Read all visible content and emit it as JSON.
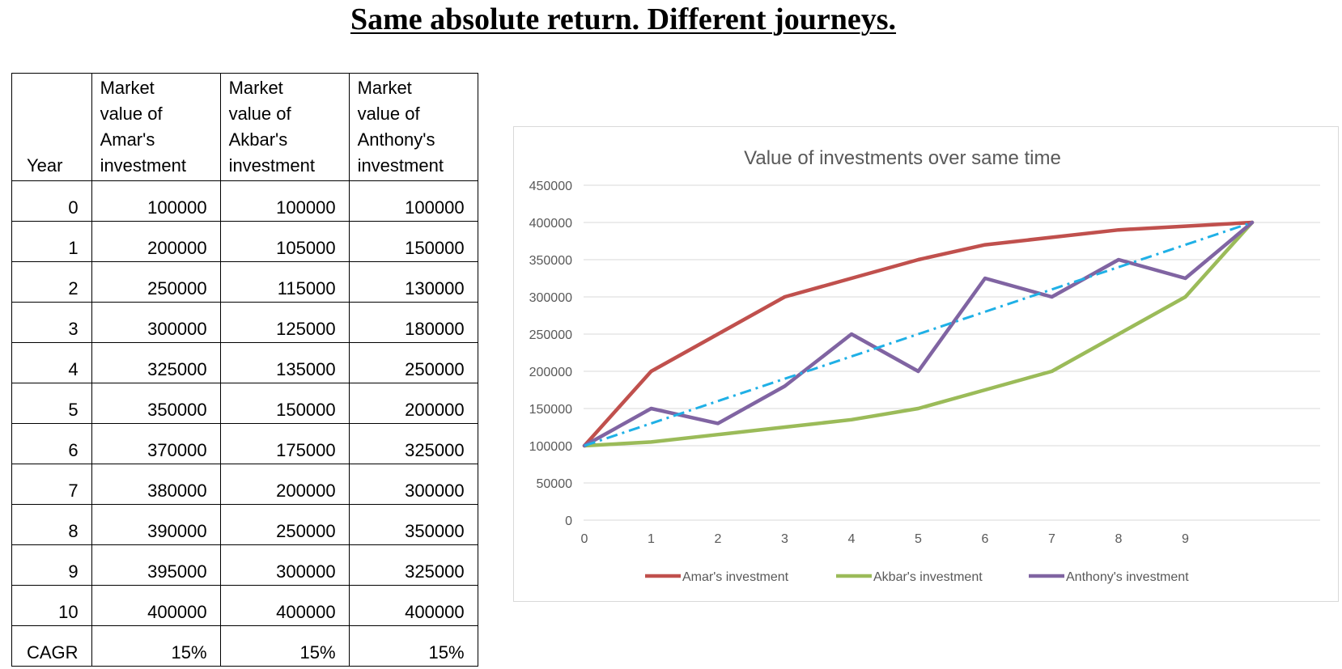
{
  "page": {
    "title": "Same absolute return. Different journeys."
  },
  "table": {
    "headers": [
      "Year",
      "Market value of Amar's investment",
      "Market value of Akbar's investment",
      "Market value of Anthony's investment"
    ],
    "header_lines": [
      [
        "Year"
      ],
      [
        "Market",
        "value of",
        "Amar's",
        "investment"
      ],
      [
        "Market",
        "value of",
        "Akbar's",
        "investment"
      ],
      [
        "Market",
        "value of",
        "Anthony's",
        "investment"
      ]
    ],
    "rows": [
      [
        "0",
        "100000",
        "100000",
        "100000"
      ],
      [
        "1",
        "200000",
        "105000",
        "150000"
      ],
      [
        "2",
        "250000",
        "115000",
        "130000"
      ],
      [
        "3",
        "300000",
        "125000",
        "180000"
      ],
      [
        "4",
        "325000",
        "135000",
        "250000"
      ],
      [
        "5",
        "350000",
        "150000",
        "200000"
      ],
      [
        "6",
        "370000",
        "175000",
        "325000"
      ],
      [
        "7",
        "380000",
        "200000",
        "300000"
      ],
      [
        "8",
        "390000",
        "250000",
        "350000"
      ],
      [
        "9",
        "395000",
        "300000",
        "325000"
      ],
      [
        "10",
        "400000",
        "400000",
        "400000"
      ],
      [
        "CAGR",
        "15%",
        "15%",
        "15%"
      ]
    ]
  },
  "chart_data": {
    "type": "line",
    "title": "Value of investments over same time",
    "xlabel": "",
    "ylabel": "",
    "x": [
      0,
      1,
      2,
      3,
      4,
      5,
      6,
      7,
      8,
      9,
      10
    ],
    "x_tick_labels": [
      "0",
      "1",
      "2",
      "3",
      "4",
      "5",
      "6",
      "7",
      "8",
      "9"
    ],
    "ylim": [
      0,
      450000
    ],
    "y_ticks": [
      0,
      50000,
      100000,
      150000,
      200000,
      250000,
      300000,
      350000,
      400000,
      450000
    ],
    "grid": true,
    "legend_position": "bottom",
    "series": [
      {
        "name": "Amar's investment",
        "color": "#c0504d",
        "values": [
          100000,
          200000,
          250000,
          300000,
          325000,
          350000,
          370000,
          380000,
          390000,
          395000,
          400000
        ]
      },
      {
        "name": "Akbar's investment",
        "color": "#9bbb59",
        "values": [
          100000,
          105000,
          115000,
          125000,
          135000,
          150000,
          175000,
          200000,
          250000,
          300000,
          400000
        ]
      },
      {
        "name": "Anthony's investment",
        "color": "#8064a2",
        "values": [
          100000,
          150000,
          130000,
          180000,
          250000,
          200000,
          325000,
          300000,
          350000,
          325000,
          400000
        ]
      }
    ],
    "trendline": {
      "color": "#1fb0e6",
      "style": "dash-dot",
      "values": [
        100000,
        400000
      ]
    }
  }
}
